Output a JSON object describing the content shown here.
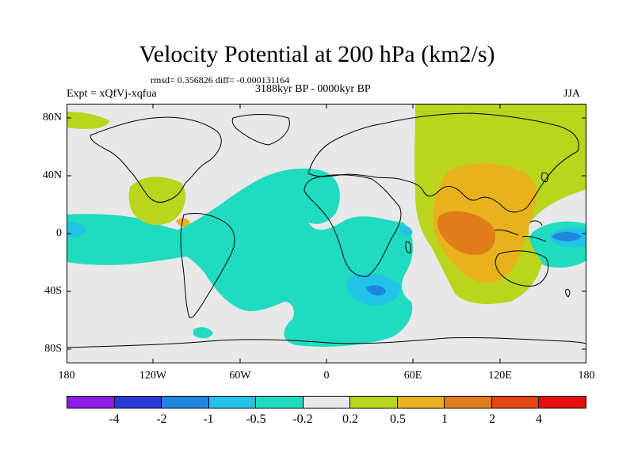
{
  "header": {
    "title": "Velocity Potential at 200 hPa (km2/s)",
    "stats": "rmsd= 0.356826 diff= -0.000131164",
    "experiment": "Expt = xQfVj-xqfua",
    "period": "3188kyr BP - 0000kyr BP",
    "season": "JJA"
  },
  "axes": {
    "lat_labels": [
      "80N",
      "40N",
      "0",
      "40S",
      "80S"
    ],
    "lon_labels": [
      "180",
      "120W",
      "60W",
      "0",
      "60E",
      "120E",
      "180"
    ]
  },
  "colorbar": {
    "colors": [
      "#8c1de6",
      "#2b39d9",
      "#1f86e0",
      "#22c3e8",
      "#1fdcc0",
      "#e8e8e8",
      "#b9d51c",
      "#e9b21c",
      "#e07c1b",
      "#e4450e",
      "#e60d0d"
    ],
    "labels": [
      "-4",
      "-2",
      "-1",
      "-0.5",
      "-0.2",
      "0.2",
      "0.5",
      "1",
      "2",
      "4"
    ]
  },
  "map": {
    "projection": "cylindrical equidistant",
    "lon_range": [
      -180,
      180
    ],
    "lat_range": [
      -90,
      90
    ],
    "field": "velocity potential anomaly, filled contours"
  }
}
